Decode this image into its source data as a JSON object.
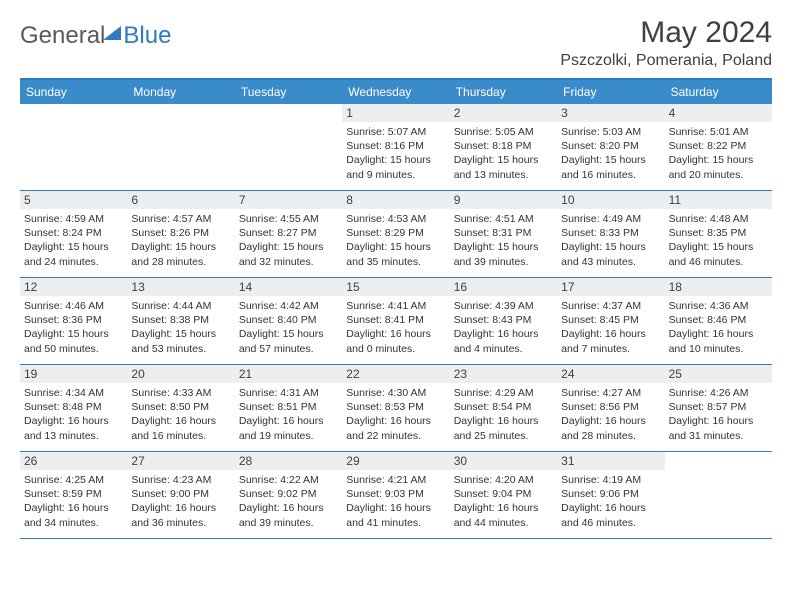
{
  "logo": {
    "text1": "General",
    "text2": "Blue"
  },
  "title": "May 2024",
  "location": "Pszczolki, Pomerania, Poland",
  "colors": {
    "header_bg": "#3a8bc9",
    "border": "#2f7ac0",
    "daynum_bg": "#eceeef",
    "text": "#333333",
    "logo_gray": "#5a5a5a",
    "logo_blue": "#2f7ac0"
  },
  "day_names": [
    "Sunday",
    "Monday",
    "Tuesday",
    "Wednesday",
    "Thursday",
    "Friday",
    "Saturday"
  ],
  "weeks": [
    [
      {
        "n": "",
        "sr": "",
        "ss": "",
        "dl": ""
      },
      {
        "n": "",
        "sr": "",
        "ss": "",
        "dl": ""
      },
      {
        "n": "",
        "sr": "",
        "ss": "",
        "dl": ""
      },
      {
        "n": "1",
        "sr": "Sunrise: 5:07 AM",
        "ss": "Sunset: 8:16 PM",
        "dl": "Daylight: 15 hours and 9 minutes."
      },
      {
        "n": "2",
        "sr": "Sunrise: 5:05 AM",
        "ss": "Sunset: 8:18 PM",
        "dl": "Daylight: 15 hours and 13 minutes."
      },
      {
        "n": "3",
        "sr": "Sunrise: 5:03 AM",
        "ss": "Sunset: 8:20 PM",
        "dl": "Daylight: 15 hours and 16 minutes."
      },
      {
        "n": "4",
        "sr": "Sunrise: 5:01 AM",
        "ss": "Sunset: 8:22 PM",
        "dl": "Daylight: 15 hours and 20 minutes."
      }
    ],
    [
      {
        "n": "5",
        "sr": "Sunrise: 4:59 AM",
        "ss": "Sunset: 8:24 PM",
        "dl": "Daylight: 15 hours and 24 minutes."
      },
      {
        "n": "6",
        "sr": "Sunrise: 4:57 AM",
        "ss": "Sunset: 8:26 PM",
        "dl": "Daylight: 15 hours and 28 minutes."
      },
      {
        "n": "7",
        "sr": "Sunrise: 4:55 AM",
        "ss": "Sunset: 8:27 PM",
        "dl": "Daylight: 15 hours and 32 minutes."
      },
      {
        "n": "8",
        "sr": "Sunrise: 4:53 AM",
        "ss": "Sunset: 8:29 PM",
        "dl": "Daylight: 15 hours and 35 minutes."
      },
      {
        "n": "9",
        "sr": "Sunrise: 4:51 AM",
        "ss": "Sunset: 8:31 PM",
        "dl": "Daylight: 15 hours and 39 minutes."
      },
      {
        "n": "10",
        "sr": "Sunrise: 4:49 AM",
        "ss": "Sunset: 8:33 PM",
        "dl": "Daylight: 15 hours and 43 minutes."
      },
      {
        "n": "11",
        "sr": "Sunrise: 4:48 AM",
        "ss": "Sunset: 8:35 PM",
        "dl": "Daylight: 15 hours and 46 minutes."
      }
    ],
    [
      {
        "n": "12",
        "sr": "Sunrise: 4:46 AM",
        "ss": "Sunset: 8:36 PM",
        "dl": "Daylight: 15 hours and 50 minutes."
      },
      {
        "n": "13",
        "sr": "Sunrise: 4:44 AM",
        "ss": "Sunset: 8:38 PM",
        "dl": "Daylight: 15 hours and 53 minutes."
      },
      {
        "n": "14",
        "sr": "Sunrise: 4:42 AM",
        "ss": "Sunset: 8:40 PM",
        "dl": "Daylight: 15 hours and 57 minutes."
      },
      {
        "n": "15",
        "sr": "Sunrise: 4:41 AM",
        "ss": "Sunset: 8:41 PM",
        "dl": "Daylight: 16 hours and 0 minutes."
      },
      {
        "n": "16",
        "sr": "Sunrise: 4:39 AM",
        "ss": "Sunset: 8:43 PM",
        "dl": "Daylight: 16 hours and 4 minutes."
      },
      {
        "n": "17",
        "sr": "Sunrise: 4:37 AM",
        "ss": "Sunset: 8:45 PM",
        "dl": "Daylight: 16 hours and 7 minutes."
      },
      {
        "n": "18",
        "sr": "Sunrise: 4:36 AM",
        "ss": "Sunset: 8:46 PM",
        "dl": "Daylight: 16 hours and 10 minutes."
      }
    ],
    [
      {
        "n": "19",
        "sr": "Sunrise: 4:34 AM",
        "ss": "Sunset: 8:48 PM",
        "dl": "Daylight: 16 hours and 13 minutes."
      },
      {
        "n": "20",
        "sr": "Sunrise: 4:33 AM",
        "ss": "Sunset: 8:50 PM",
        "dl": "Daylight: 16 hours and 16 minutes."
      },
      {
        "n": "21",
        "sr": "Sunrise: 4:31 AM",
        "ss": "Sunset: 8:51 PM",
        "dl": "Daylight: 16 hours and 19 minutes."
      },
      {
        "n": "22",
        "sr": "Sunrise: 4:30 AM",
        "ss": "Sunset: 8:53 PM",
        "dl": "Daylight: 16 hours and 22 minutes."
      },
      {
        "n": "23",
        "sr": "Sunrise: 4:29 AM",
        "ss": "Sunset: 8:54 PM",
        "dl": "Daylight: 16 hours and 25 minutes."
      },
      {
        "n": "24",
        "sr": "Sunrise: 4:27 AM",
        "ss": "Sunset: 8:56 PM",
        "dl": "Daylight: 16 hours and 28 minutes."
      },
      {
        "n": "25",
        "sr": "Sunrise: 4:26 AM",
        "ss": "Sunset: 8:57 PM",
        "dl": "Daylight: 16 hours and 31 minutes."
      }
    ],
    [
      {
        "n": "26",
        "sr": "Sunrise: 4:25 AM",
        "ss": "Sunset: 8:59 PM",
        "dl": "Daylight: 16 hours and 34 minutes."
      },
      {
        "n": "27",
        "sr": "Sunrise: 4:23 AM",
        "ss": "Sunset: 9:00 PM",
        "dl": "Daylight: 16 hours and 36 minutes."
      },
      {
        "n": "28",
        "sr": "Sunrise: 4:22 AM",
        "ss": "Sunset: 9:02 PM",
        "dl": "Daylight: 16 hours and 39 minutes."
      },
      {
        "n": "29",
        "sr": "Sunrise: 4:21 AM",
        "ss": "Sunset: 9:03 PM",
        "dl": "Daylight: 16 hours and 41 minutes."
      },
      {
        "n": "30",
        "sr": "Sunrise: 4:20 AM",
        "ss": "Sunset: 9:04 PM",
        "dl": "Daylight: 16 hours and 44 minutes."
      },
      {
        "n": "31",
        "sr": "Sunrise: 4:19 AM",
        "ss": "Sunset: 9:06 PM",
        "dl": "Daylight: 16 hours and 46 minutes."
      },
      {
        "n": "",
        "sr": "",
        "ss": "",
        "dl": ""
      }
    ]
  ]
}
